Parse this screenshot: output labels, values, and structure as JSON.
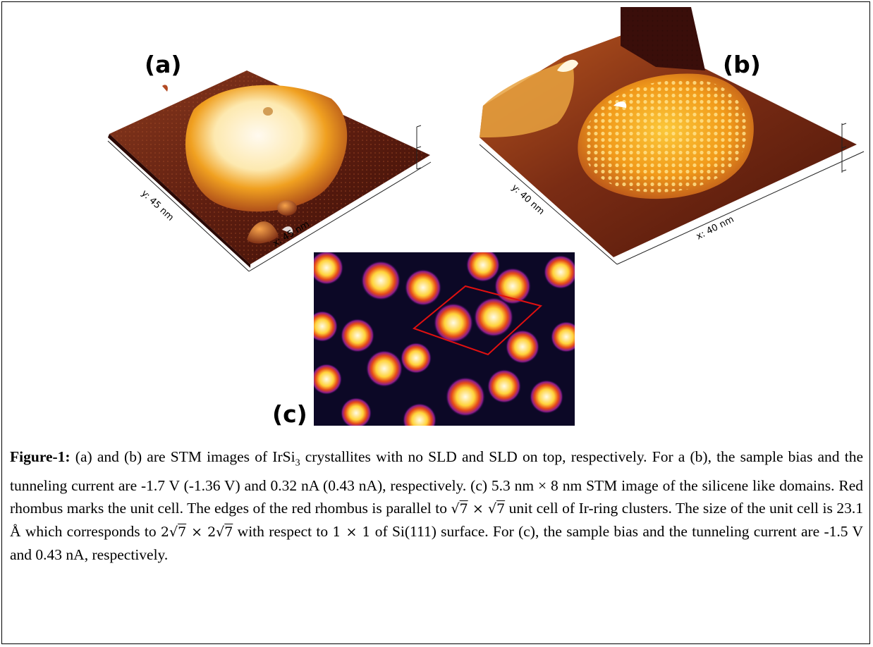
{
  "panels": {
    "a": {
      "label": "(a)",
      "x_axis": "x: 45 nm",
      "y_axis": "y: 45 nm"
    },
    "b": {
      "label": "(b)",
      "x_axis": "x: 40 nm",
      "y_axis": "y: 40 nm"
    },
    "c": {
      "label": "(c)"
    }
  },
  "caption": {
    "lead": "Figure-1:",
    "s1_pre": " (a) and (b) are STM images of IrSi",
    "s1_sub": "3",
    "s1_post": " crystallites with no SLD and SLD on top, respectively. For a (b), the sample bias and the tunneling current are -1.7 V (-1.36 V) and 0.32 nA (0.43 nA), respectively. (c) 5.3 nm × 8 nm STM image of the silicene like domains. Red rhombus marks the unit cell. The edges of the red rhombus is parallel to ",
    "m1_a": "7",
    "m_times": " × ",
    "m1_b": "7",
    "s2": " unit cell of Ir-ring clusters. The size of the unit cell is 23.1 Å which corresponds to ",
    "m2_a": "7",
    "m2_b": "7",
    "m2_coef": "2",
    "s3": " with respect to ",
    "m3": "1 × 1",
    "s4": " of Si(111) surface. For (c), the sample bias and the tunneling current are -1.5 V and 0.43 nA, respectively."
  }
}
